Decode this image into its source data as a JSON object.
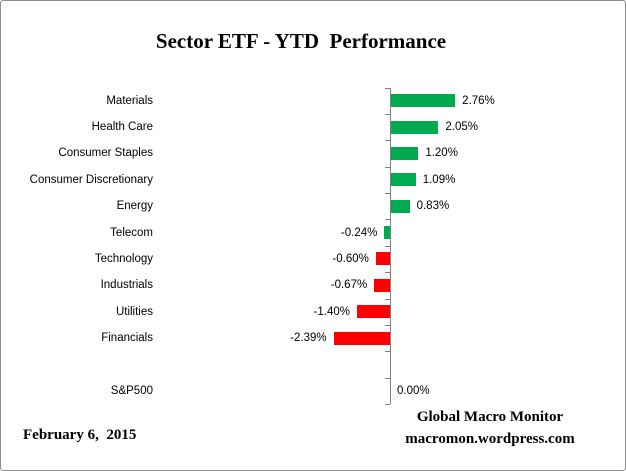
{
  "title": "Sector ETF - YTD  Performance",
  "footer": {
    "date": "February 6,  2015",
    "source_line1": "Global Macro Monitor",
    "source_line2": "macromon.wordpress.com"
  },
  "colors": {
    "positive_bar": "#00AB4F",
    "negative_bar": "#FF0000",
    "axis": "#808080",
    "border": "#8C8C8C",
    "text": "#000000"
  },
  "chart_data": {
    "type": "bar",
    "orientation": "horizontal",
    "title": "Sector ETF - YTD  Performance",
    "xlabel": "",
    "ylabel": "",
    "xlim": [
      -2.6,
      3.0
    ],
    "grid": false,
    "legend": "none",
    "axis_tick_labels_visible": false,
    "data_labels": "outside-end",
    "rows": [
      {
        "label": "Materials",
        "value": 2.76,
        "display": "2.76%",
        "color": "#00AB4F"
      },
      {
        "label": "Health Care",
        "value": 2.05,
        "display": "2.05%",
        "color": "#00AB4F"
      },
      {
        "label": "Consumer Staples",
        "value": 1.2,
        "display": "1.20%",
        "color": "#00AB4F"
      },
      {
        "label": "Consumer Discretionary",
        "value": 1.09,
        "display": "1.09%",
        "color": "#00AB4F"
      },
      {
        "label": "Energy",
        "value": 0.83,
        "display": "0.83%",
        "color": "#00AB4F"
      },
      {
        "label": "Telecom",
        "value": -0.24,
        "display": "-0.24%",
        "color": "#00AB4F"
      },
      {
        "label": "Technology",
        "value": -0.6,
        "display": "-0.60%",
        "color": "#FF0000"
      },
      {
        "label": "Industrials",
        "value": -0.67,
        "display": "-0.67%",
        "color": "#FF0000"
      },
      {
        "label": "Utilities",
        "value": -1.4,
        "display": "-1.40%",
        "color": "#FF0000"
      },
      {
        "label": "Financials",
        "value": -2.39,
        "display": "-2.39%",
        "color": "#FF0000"
      },
      {
        "label": "",
        "value": null,
        "display": "",
        "color": null
      },
      {
        "label": "S&P500",
        "value": 0.0,
        "display": "0.00%",
        "color": null
      }
    ]
  }
}
